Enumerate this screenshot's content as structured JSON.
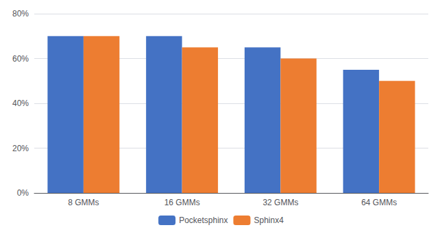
{
  "chart_data": {
    "type": "bar",
    "categories": [
      "8 GMMs",
      "16 GMMs",
      "32 GMMs",
      "64 GMMs"
    ],
    "series": [
      {
        "name": "Pocketsphinx",
        "color": "#4472C4",
        "values": [
          0.7,
          0.7,
          0.65,
          0.55
        ]
      },
      {
        "name": "Sphinx4",
        "color": "#ED7D31",
        "values": [
          0.7,
          0.65,
          0.6,
          0.5
        ]
      }
    ],
    "ylim": [
      0,
      0.8
    ],
    "yticks": [
      {
        "value": 0.0,
        "label": "0%"
      },
      {
        "value": 0.2,
        "label": "20%"
      },
      {
        "value": 0.4,
        "label": "40%"
      },
      {
        "value": 0.6,
        "label": "60%"
      },
      {
        "value": 0.8,
        "label": "80%"
      }
    ],
    "grid": true,
    "legend": "bottom"
  }
}
